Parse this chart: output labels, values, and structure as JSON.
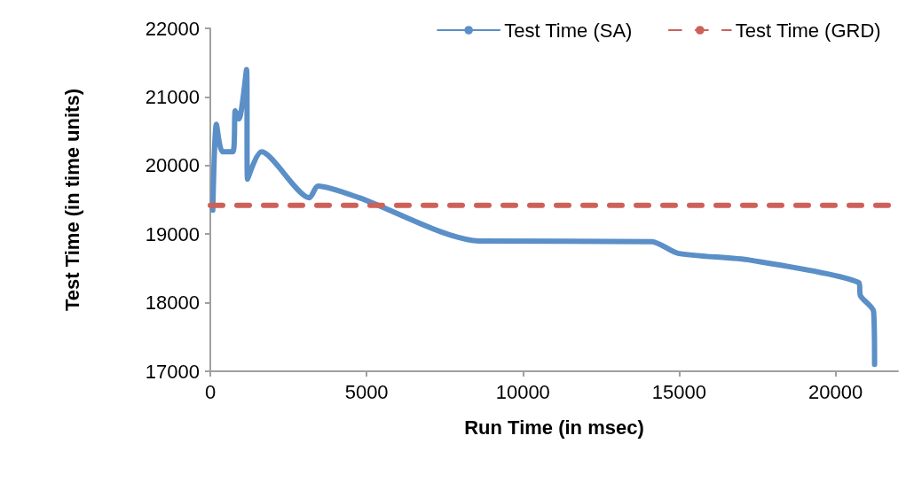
{
  "chart_data": {
    "type": "line",
    "xlabel": "Run Time (in msec)",
    "ylabel": "Test Time (in time units)",
    "xlim": [
      0,
      22000
    ],
    "xticks": [
      0,
      5000,
      10000,
      15000,
      20000
    ],
    "ylim": [
      17000,
      22000
    ],
    "yticks": [
      17000,
      18000,
      19000,
      20000,
      21000,
      22000
    ],
    "grid": false,
    "legend": "top right",
    "marker": "none",
    "series": [
      {
        "name": "Test Time (SA)",
        "color": "#5b8fc7",
        "line_style": "solid",
        "x": [
          80,
          195,
          390,
          720,
          800,
          920,
          1160,
          1190,
          1640,
          3170,
          3450,
          4760,
          8600,
          14130,
          14960,
          17270,
          20750,
          20800,
          21220,
          21250
        ],
        "values": [
          19350,
          20600,
          20200,
          20200,
          20800,
          20680,
          21400,
          19800,
          20200,
          19530,
          19700,
          19530,
          18900,
          18890,
          18720,
          18620,
          18290,
          18100,
          17870,
          17100
        ]
      },
      {
        "name": "Test Time (GRD)",
        "color": "#cd6159",
        "line_style": "dashed",
        "x": [
          0,
          22000
        ],
        "values": [
          19420,
          19420
        ]
      }
    ]
  }
}
